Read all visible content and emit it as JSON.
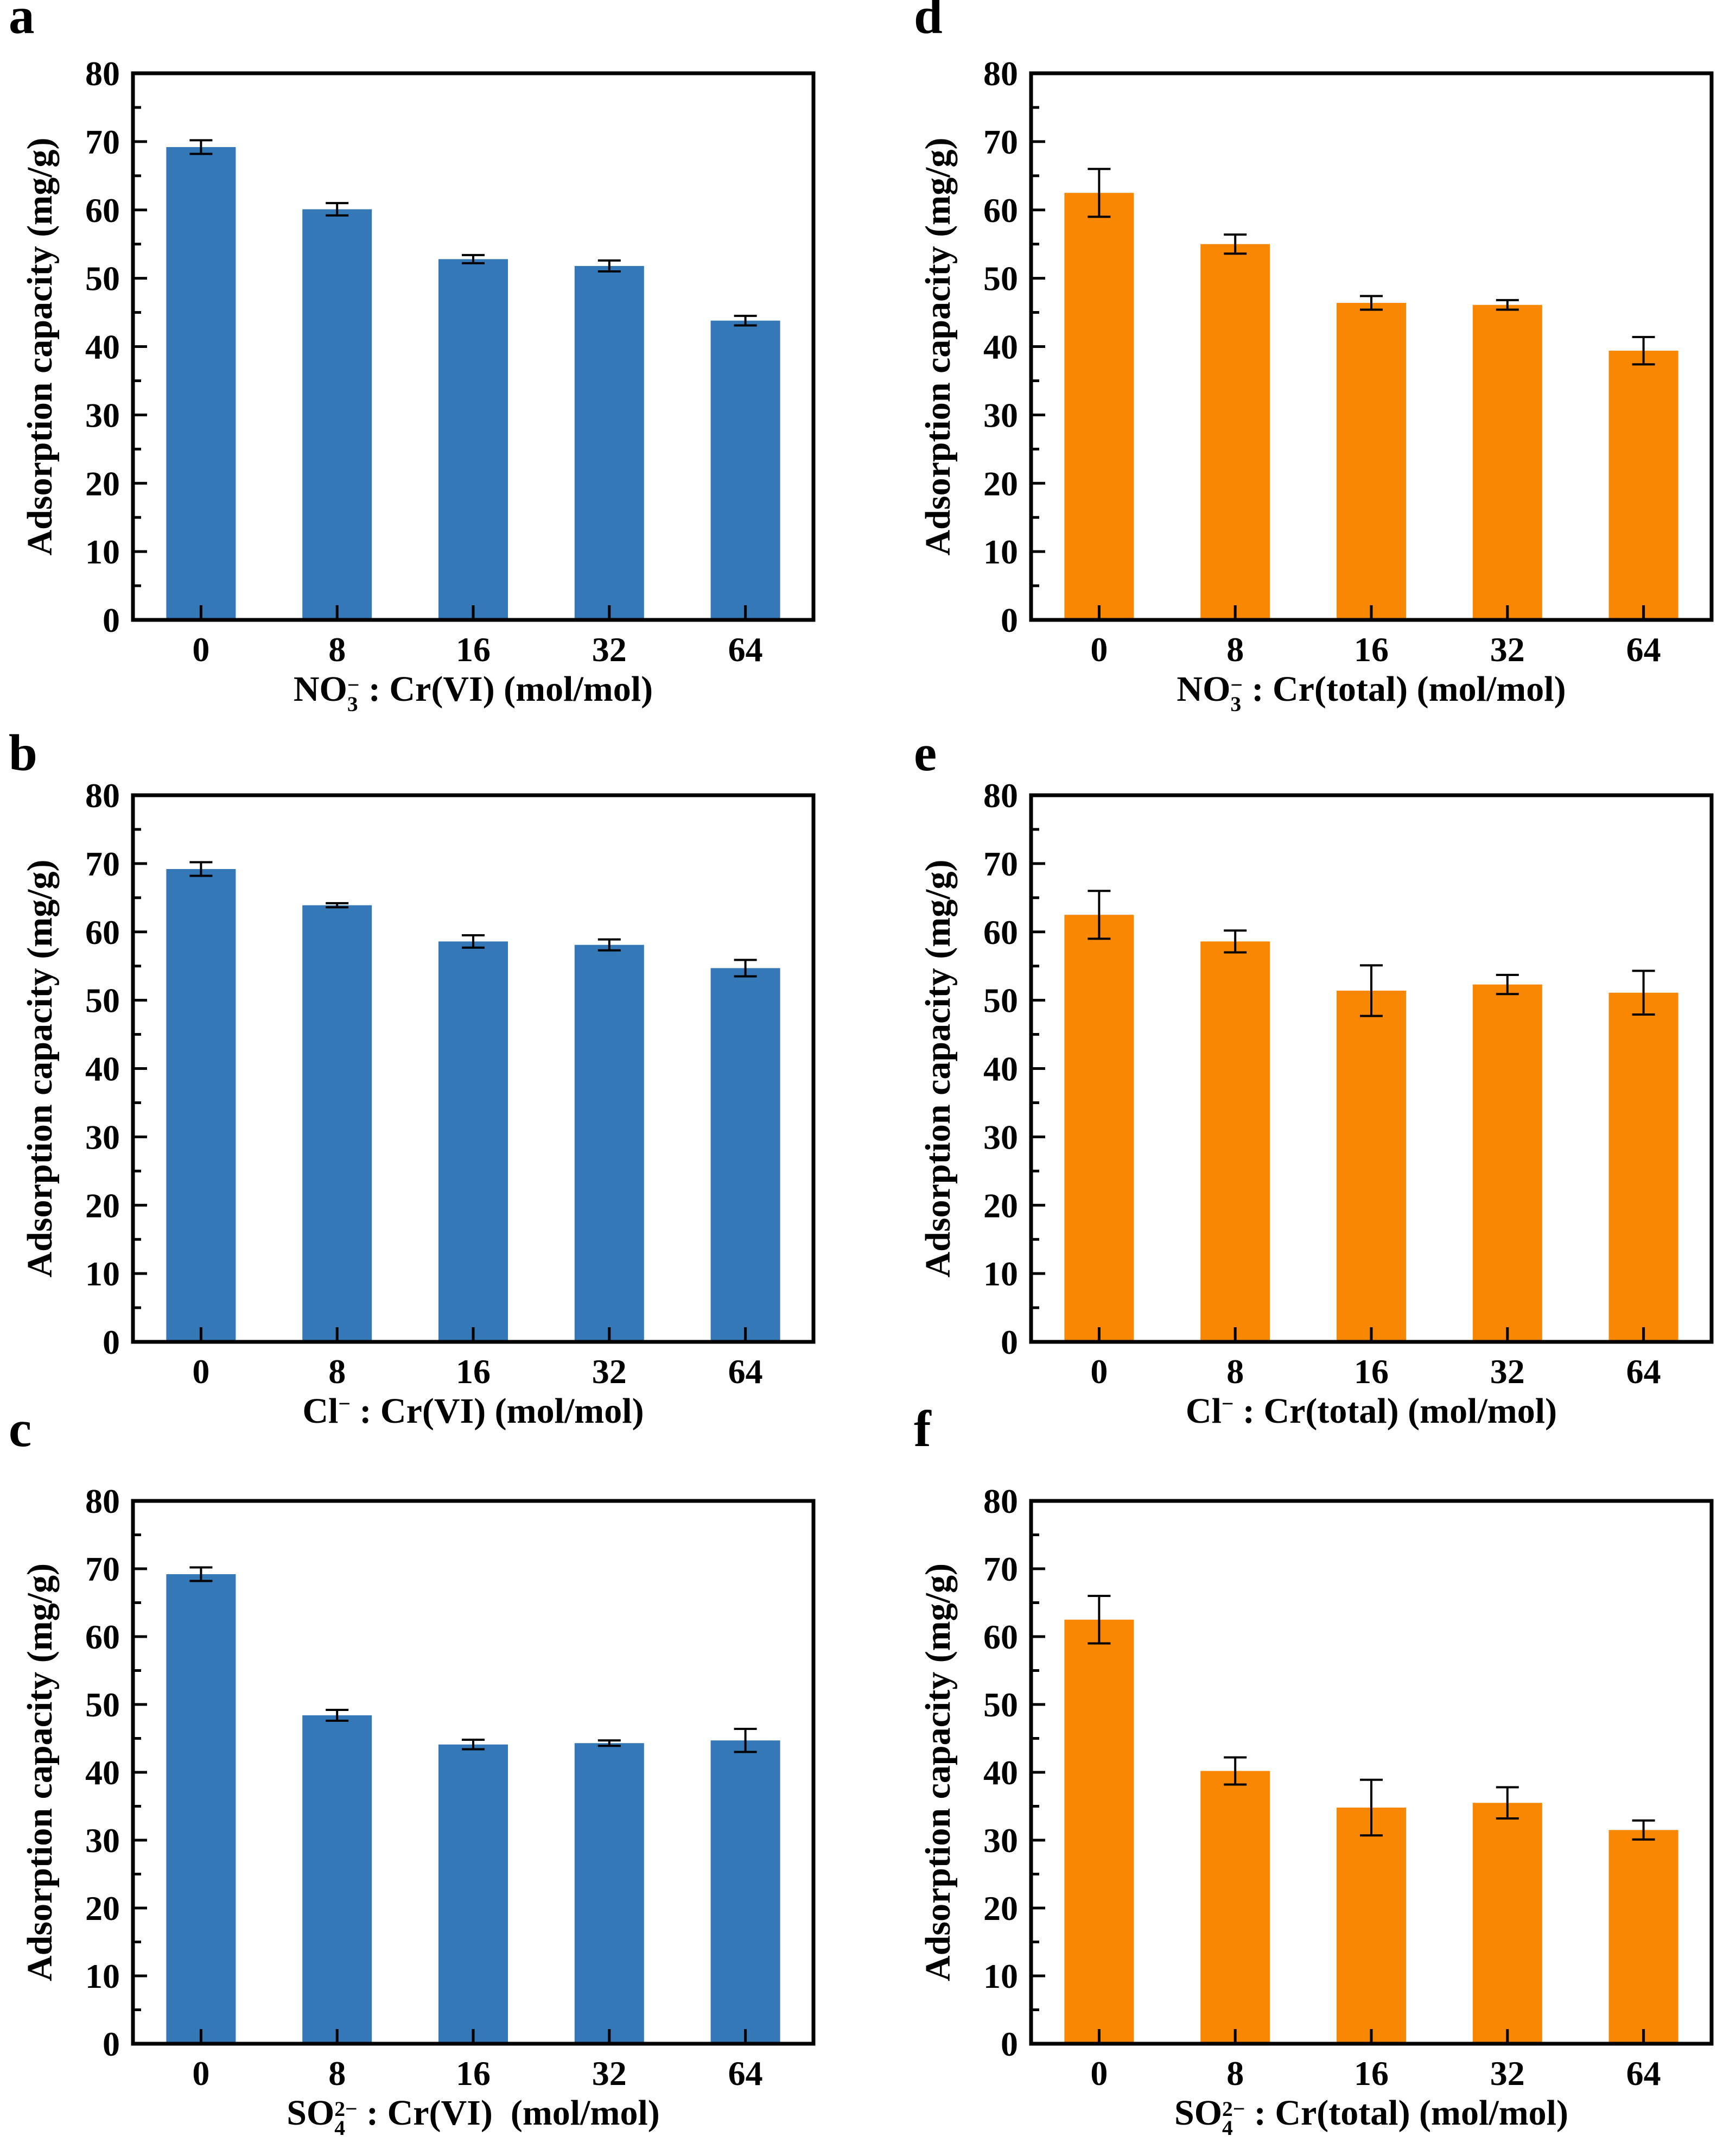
{
  "figure": {
    "background_color": "#ffffff",
    "text_color": "#000000",
    "panel_letters": [
      "a",
      "b",
      "c",
      "d",
      "e",
      "f"
    ]
  },
  "chart_data": [
    {
      "panel_label": "a",
      "type": "bar",
      "bar_color": "#3478b8",
      "error_bar_color": "#000000",
      "categories": [
        "0",
        "8",
        "16",
        "32",
        "64"
      ],
      "values": [
        69.2,
        60.1,
        52.8,
        51.8,
        43.8
      ],
      "errors": [
        1.0,
        0.9,
        0.6,
        0.8,
        0.7
      ],
      "xlabel_segments": [
        {
          "t": "NO"
        },
        {
          "sub": "3",
          "sup": "−"
        },
        {
          "t": " : Cr(VI) (mol/mol)"
        }
      ],
      "ylabel": "Adsorption capacity (mg/g)",
      "ylim": [
        0,
        80
      ],
      "y_ticks": [
        0,
        10,
        20,
        30,
        40,
        50,
        60,
        70,
        80
      ],
      "y_minor_ticks": [
        5,
        15,
        25,
        35,
        45,
        55,
        65,
        75
      ],
      "grid": false,
      "legend": null
    },
    {
      "panel_label": "b",
      "type": "bar",
      "bar_color": "#3478b8",
      "error_bar_color": "#000000",
      "categories": [
        "0",
        "8",
        "16",
        "32",
        "64"
      ],
      "values": [
        69.2,
        63.9,
        58.6,
        58.1,
        54.7
      ],
      "errors": [
        1.0,
        0.3,
        0.9,
        0.8,
        1.2
      ],
      "xlabel_segments": [
        {
          "t": "Cl"
        },
        {
          "sup": "−"
        },
        {
          "t": " : Cr(VI) (mol/mol)"
        }
      ],
      "ylabel": "Adsorption capacity (mg/g)",
      "ylim": [
        0,
        80
      ],
      "y_ticks": [
        0,
        10,
        20,
        30,
        40,
        50,
        60,
        70,
        80
      ],
      "y_minor_ticks": [
        5,
        15,
        25,
        35,
        45,
        55,
        65,
        75
      ],
      "grid": false,
      "legend": null
    },
    {
      "panel_label": "c",
      "type": "bar",
      "bar_color": "#3478b8",
      "error_bar_color": "#000000",
      "categories": [
        "0",
        "8",
        "16",
        "32",
        "64"
      ],
      "values": [
        69.2,
        48.4,
        44.1,
        44.3,
        44.7
      ],
      "errors": [
        1.0,
        0.8,
        0.7,
        0.4,
        1.7
      ],
      "xlabel_segments": [
        {
          "t": "SO"
        },
        {
          "sub": "4",
          "sup": "2−"
        },
        {
          "t": " : Cr(VI)  (mol/mol)"
        }
      ],
      "ylabel": "Adsorption capacity (mg/g)",
      "ylim": [
        0,
        80
      ],
      "y_ticks": [
        0,
        10,
        20,
        30,
        40,
        50,
        60,
        70,
        80
      ],
      "y_minor_ticks": [
        5,
        15,
        25,
        35,
        45,
        55,
        65,
        75
      ],
      "grid": false,
      "legend": null
    },
    {
      "panel_label": "d",
      "type": "bar",
      "bar_color": "#f98702",
      "error_bar_color": "#000000",
      "categories": [
        "0",
        "8",
        "16",
        "32",
        "64"
      ],
      "values": [
        62.5,
        55.0,
        46.4,
        46.1,
        39.4
      ],
      "errors": [
        3.5,
        1.4,
        1.0,
        0.7,
        2.0
      ],
      "xlabel_segments": [
        {
          "t": "NO"
        },
        {
          "sub": "3",
          "sup": "−"
        },
        {
          "t": " : Cr(total) (mol/mol)"
        }
      ],
      "ylabel": "Adsorption capacity (mg/g)",
      "ylim": [
        0,
        80
      ],
      "y_ticks": [
        0,
        10,
        20,
        30,
        40,
        50,
        60,
        70,
        80
      ],
      "y_minor_ticks": [
        5,
        15,
        25,
        35,
        45,
        55,
        65,
        75
      ],
      "grid": false,
      "legend": null
    },
    {
      "panel_label": "e",
      "type": "bar",
      "bar_color": "#f98702",
      "error_bar_color": "#000000",
      "categories": [
        "0",
        "8",
        "16",
        "32",
        "64"
      ],
      "values": [
        62.5,
        58.6,
        51.4,
        52.3,
        51.1
      ],
      "errors": [
        3.5,
        1.6,
        3.7,
        1.4,
        3.2
      ],
      "xlabel_segments": [
        {
          "t": "Cl"
        },
        {
          "sup": "−"
        },
        {
          "t": " : Cr(total) (mol/mol)"
        }
      ],
      "ylabel": "Adsorption capacity (mg/g)",
      "ylim": [
        0,
        80
      ],
      "y_ticks": [
        0,
        10,
        20,
        30,
        40,
        50,
        60,
        70,
        80
      ],
      "y_minor_ticks": [
        5,
        15,
        25,
        35,
        45,
        55,
        65,
        75
      ],
      "grid": false,
      "legend": null
    },
    {
      "panel_label": "f",
      "type": "bar",
      "bar_color": "#f98702",
      "error_bar_color": "#000000",
      "categories": [
        "0",
        "8",
        "16",
        "32",
        "64"
      ],
      "values": [
        62.5,
        40.2,
        34.8,
        35.5,
        31.5
      ],
      "errors": [
        3.5,
        2.0,
        4.1,
        2.3,
        1.4
      ],
      "xlabel_segments": [
        {
          "t": "SO"
        },
        {
          "sub": "4",
          "sup": "2−"
        },
        {
          "t": " : Cr(total) (mol/mol)"
        }
      ],
      "ylabel": "Adsorption capacity (mg/g)",
      "ylim": [
        0,
        80
      ],
      "y_ticks": [
        0,
        10,
        20,
        30,
        40,
        50,
        60,
        70,
        80
      ],
      "y_minor_ticks": [
        5,
        15,
        25,
        35,
        45,
        55,
        65,
        75
      ],
      "grid": false,
      "legend": null
    }
  ]
}
